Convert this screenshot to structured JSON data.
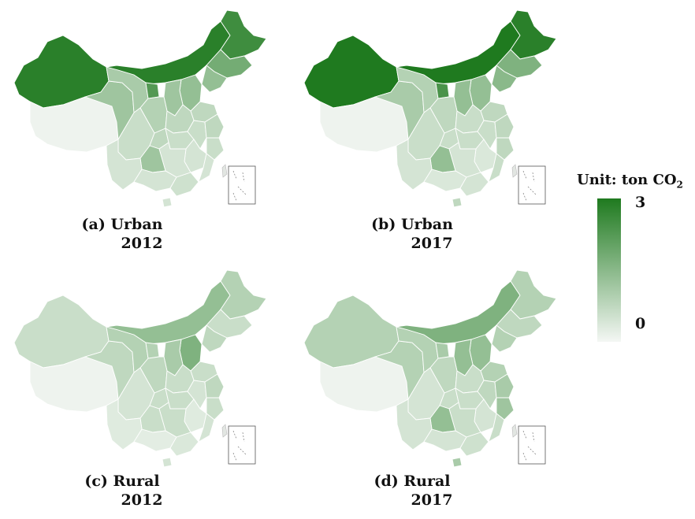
{
  "legend": {
    "title_prefix": "Unit: ton CO",
    "title_subscript": "2",
    "max_label": "3",
    "min_label": "0",
    "color_high": "#1f7a1f",
    "color_low": "#f4f7f4"
  },
  "panels": [
    {
      "id": "a",
      "label_line1": "(a) Urban",
      "label_line2": "2012",
      "levels": {
        "xinjiang": 0.95,
        "tibet": 0.03,
        "qinghai": 0.4,
        "gansu": 0.35,
        "inner_mongolia": 0.95,
        "heilongjiang": 0.85,
        "jilin": 0.6,
        "liaoning": 0.45,
        "beijing_hebei": 0.45,
        "shanxi": 0.4,
        "ningxia": 0.75,
        "shaanxi": 0.3,
        "henan": 0.25,
        "shandong": 0.25,
        "sichuan": 0.2,
        "chongqing": 0.25,
        "hubei": 0.2,
        "yunnan": 0.15,
        "guizhou": 0.4,
        "hunan": 0.15,
        "jiangxi": 0.15,
        "anhui": 0.2,
        "jiangsu": 0.25,
        "zhejiang": 0.2,
        "fujian": 0.15,
        "guangxi": 0.15,
        "guangdong": 0.18,
        "hainan": 0.15
      }
    },
    {
      "id": "b",
      "label_line1": "(b) Urban",
      "label_line2": "2017",
      "levels": {
        "xinjiang": 1.0,
        "tibet": 0.03,
        "qinghai": 0.35,
        "gansu": 0.3,
        "inner_mongolia": 1.0,
        "heilongjiang": 0.95,
        "jilin": 0.55,
        "liaoning": 0.5,
        "beijing_hebei": 0.45,
        "shanxi": 0.45,
        "ningxia": 0.8,
        "shaanxi": 0.25,
        "henan": 0.2,
        "shandong": 0.25,
        "sichuan": 0.2,
        "chongqing": 0.2,
        "hubei": 0.2,
        "yunnan": 0.15,
        "guizhou": 0.45,
        "hunan": 0.15,
        "jiangxi": 0.12,
        "anhui": 0.2,
        "jiangsu": 0.25,
        "zhejiang": 0.25,
        "fujian": 0.2,
        "guangxi": 0.12,
        "guangdong": 0.15,
        "hainan": 0.25
      }
    },
    {
      "id": "c",
      "label_line1": "(c) Rural",
      "label_line2": "2012",
      "levels": {
        "xinjiang": 0.2,
        "tibet": 0.03,
        "qinghai": 0.25,
        "gansu": 0.3,
        "inner_mongolia": 0.45,
        "heilongjiang": 0.3,
        "jilin": 0.2,
        "liaoning": 0.25,
        "beijing_hebei": 0.55,
        "shanxi": 0.35,
        "ningxia": 0.3,
        "shaanxi": 0.25,
        "henan": 0.2,
        "shandong": 0.2,
        "sichuan": 0.15,
        "chongqing": 0.2,
        "hubei": 0.2,
        "yunnan": 0.1,
        "guizhou": 0.2,
        "hunan": 0.2,
        "jiangxi": 0.1,
        "anhui": 0.15,
        "jiangsu": 0.25,
        "zhejiang": 0.2,
        "fujian": 0.15,
        "guangxi": 0.08,
        "guangdong": 0.12,
        "hainan": 0.15
      }
    },
    {
      "id": "d",
      "label_line1": "(d) Rural",
      "label_line2": "2017",
      "levels": {
        "xinjiang": 0.3,
        "tibet": 0.03,
        "qinghai": 0.3,
        "gansu": 0.3,
        "inner_mongolia": 0.55,
        "heilongjiang": 0.3,
        "jilin": 0.25,
        "liaoning": 0.3,
        "beijing_hebei": 0.45,
        "shanxi": 0.45,
        "ningxia": 0.35,
        "shaanxi": 0.25,
        "henan": 0.2,
        "shandong": 0.3,
        "sichuan": 0.15,
        "chongqing": 0.2,
        "hubei": 0.2,
        "yunnan": 0.15,
        "guizhou": 0.45,
        "hunan": 0.2,
        "jiangxi": 0.15,
        "anhui": 0.25,
        "jiangsu": 0.35,
        "zhejiang": 0.4,
        "fujian": 0.2,
        "guangxi": 0.15,
        "guangdong": 0.18,
        "hainan": 0.35
      }
    }
  ]
}
